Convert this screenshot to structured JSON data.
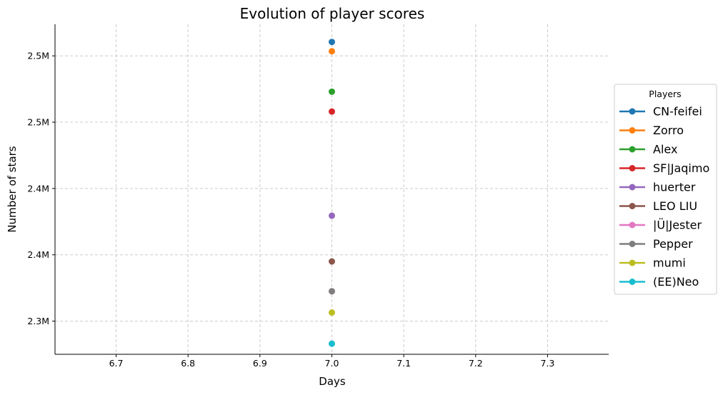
{
  "chart_data": {
    "type": "scatter",
    "title": "Evolution of player scores",
    "xlabel": "Days",
    "ylabel": "Number of stars",
    "xlim": [
      6.615,
      7.385
    ],
    "ylim": [
      2275000,
      2523800
    ],
    "x_ticks": [
      6.7,
      6.8,
      6.9,
      7.0,
      7.1,
      7.2,
      7.3
    ],
    "x_tick_labels": [
      "6.7",
      "6.8",
      "6.9",
      "7.0",
      "7.1",
      "7.2",
      "7.3"
    ],
    "y_ticks": [
      2300000,
      2350000,
      2400000,
      2450000,
      2500000
    ],
    "y_tick_labels": [
      "2.3M",
      "2.4M",
      "2.4M",
      "2.5M",
      "2.5M"
    ],
    "grid": true,
    "legend": {
      "title": "Players",
      "placement": "right"
    },
    "series": [
      {
        "name": "CN-feifei",
        "color": "#1f77b4",
        "x": [
          7.0
        ],
        "y": [
          2510500
        ]
      },
      {
        "name": "Zorro",
        "color": "#ff7f0e",
        "x": [
          7.0
        ],
        "y": [
          2503500
        ]
      },
      {
        "name": "Alex",
        "color": "#2ca02c",
        "x": [
          7.0
        ],
        "y": [
          2473000
        ]
      },
      {
        "name": "SF|Jaqimo",
        "color": "#d62728",
        "x": [
          7.0
        ],
        "y": [
          2458000
        ]
      },
      {
        "name": "huerter",
        "color": "#9467bd",
        "x": [
          7.0
        ],
        "y": [
          2379500
        ]
      },
      {
        "name": "LEO LIU",
        "color": "#8c564b",
        "x": [
          7.0
        ],
        "y": [
          2345000
        ]
      },
      {
        "name": "|Ü|Jester",
        "color": "#e377c2",
        "x": [
          7.0
        ],
        "y": [
          2322500
        ]
      },
      {
        "name": "Pepper",
        "color": "#7f7f7f",
        "x": [
          7.0
        ],
        "y": [
          2322500
        ]
      },
      {
        "name": "mumi",
        "color": "#bcbd22",
        "x": [
          7.0
        ],
        "y": [
          2306500
        ]
      },
      {
        "name": "(EE)Neo",
        "color": "#17becf",
        "x": [
          7.0
        ],
        "y": [
          2283000
        ]
      }
    ]
  }
}
